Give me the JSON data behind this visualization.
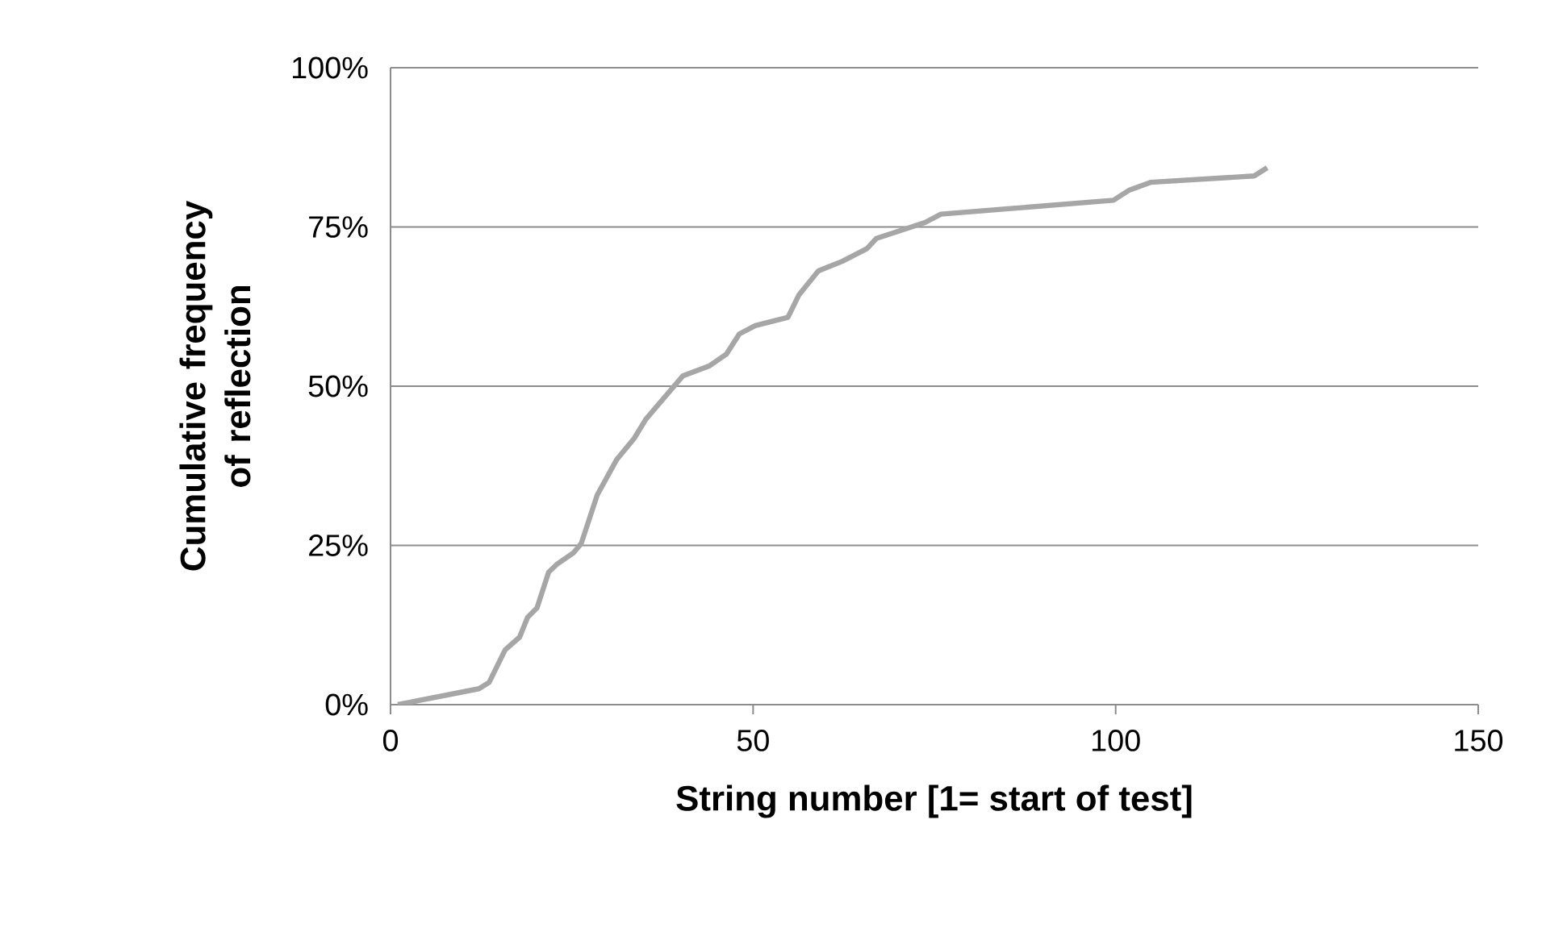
{
  "chart_data": {
    "type": "line",
    "xlabel": "String number [1= start of test]",
    "ylabel": "Cumulative frequency of reflection",
    "xlim": [
      0,
      150
    ],
    "xticks": [
      0,
      50,
      100,
      150
    ],
    "ylim": [
      0,
      100
    ],
    "yticks": [
      {
        "value": 0,
        "label": "0%"
      },
      {
        "value": 25,
        "label": "25%"
      },
      {
        "value": 50,
        "label": "50%"
      },
      {
        "value": 75,
        "label": "75%"
      },
      {
        "value": 100,
        "label": "100%"
      }
    ],
    "grid": "y",
    "marker": "none",
    "line_style": "solid",
    "series": [
      {
        "color": "#a6a6a6",
        "x": [
          1,
          12.2,
          13.6,
          15.8,
          17.8,
          18.9,
          20.2,
          21.8,
          22.9,
          25.2,
          26.3,
          28.5,
          31.2,
          33.6,
          35.2,
          40.3,
          44,
          46.3,
          48.1,
          50.3,
          54.8,
          56.3,
          59,
          62.3,
          65.7,
          67,
          73.7,
          75.9,
          99.7,
          101.9,
          104.8,
          119.1,
          120.9
        ],
        "values": [
          0,
          2.5,
          3.5,
          8.6,
          10.6,
          13.7,
          15.2,
          20.8,
          22,
          23.8,
          25.3,
          32.9,
          38.5,
          41.8,
          44.8,
          51.6,
          53.2,
          55,
          58.2,
          59.5,
          60.8,
          64.3,
          68.1,
          69.6,
          71.6,
          73.2,
          75.7,
          77,
          79.2,
          80.8,
          82,
          83,
          84.3
        ]
      }
    ]
  }
}
